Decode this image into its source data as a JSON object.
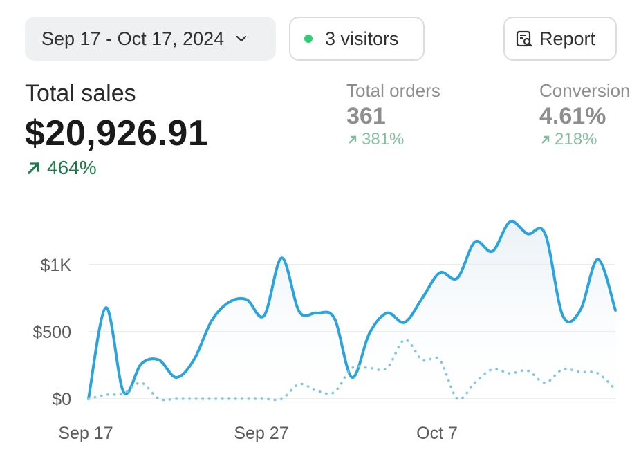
{
  "toolbar": {
    "date_range": "Sep 17 - Oct 17, 2024",
    "visitors": "3 visitors",
    "report": "Report"
  },
  "metrics": {
    "total_sales": {
      "label": "Total sales",
      "value": "$20,926.91",
      "change": "464%"
    },
    "total_orders": {
      "label": "Total orders",
      "value": "361",
      "change": "381%"
    },
    "conversion": {
      "label": "Conversion",
      "value": "4.61%",
      "change": "218%"
    }
  },
  "colors": {
    "line": "#2ba3dd",
    "comparison": "#7ec8e3",
    "positive": "#1f7a4a",
    "grid": "#e5e5e5"
  },
  "chart_data": {
    "type": "line",
    "x_ticks": [
      "Sep 17",
      "Sep 27",
      "Oct 7"
    ],
    "y_ticks": [
      "$0",
      "$500",
      "$1K"
    ],
    "ylim": [
      0,
      1300
    ],
    "x": [
      "Sep 17",
      "Sep 18",
      "Sep 19",
      "Sep 20",
      "Sep 21",
      "Sep 22",
      "Sep 23",
      "Sep 24",
      "Sep 25",
      "Sep 26",
      "Sep 27",
      "Sep 28",
      "Sep 29",
      "Sep 30",
      "Oct 1",
      "Oct 2",
      "Oct 3",
      "Oct 4",
      "Oct 5",
      "Oct 6",
      "Oct 7",
      "Oct 8",
      "Oct 9",
      "Oct 10",
      "Oct 11",
      "Oct 12",
      "Oct 13",
      "Oct 14",
      "Oct 15",
      "Oct 16",
      "Oct 17"
    ],
    "series": [
      {
        "style": "solid",
        "values": [
          0,
          680,
          50,
          260,
          290,
          160,
          290,
          580,
          720,
          740,
          620,
          1050,
          650,
          640,
          600,
          160,
          490,
          640,
          570,
          750,
          940,
          900,
          1170,
          1100,
          1320,
          1230,
          1230,
          620,
          660,
          1040,
          660
        ]
      },
      {
        "style": "dotted",
        "values": [
          0,
          30,
          40,
          120,
          0,
          0,
          0,
          0,
          0,
          0,
          0,
          0,
          110,
          60,
          50,
          230,
          230,
          230,
          440,
          290,
          290,
          0,
          120,
          220,
          190,
          210,
          120,
          220,
          200,
          190,
          70
        ]
      }
    ]
  }
}
